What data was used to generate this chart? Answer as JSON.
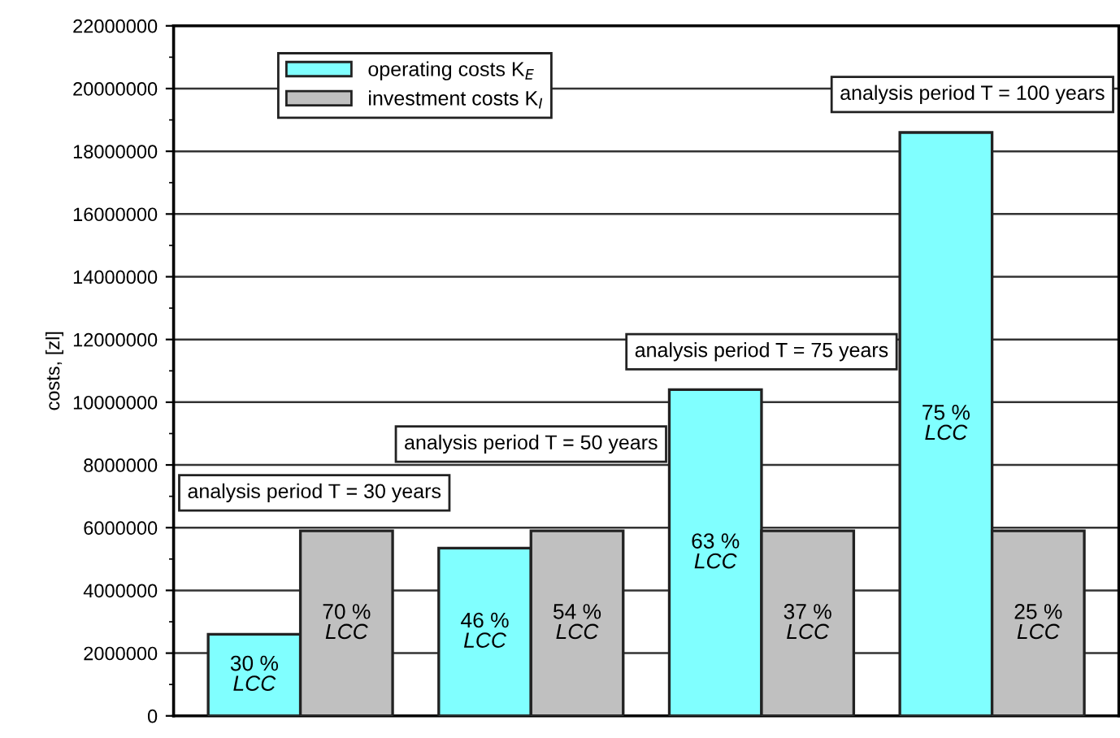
{
  "chart_data": {
    "type": "bar",
    "ylabel": "costs, [zl]",
    "categories": [
      null,
      null,
      null,
      null
    ],
    "tick_labels": "y",
    "series": [
      {
        "name": "operating costs K$_{E}$",
        "color": "#80ffff",
        "values": [
          2600000,
          5350000,
          10400000,
          18600000
        ]
      },
      {
        "name": "investment costs K$_{I}$",
        "color": "#c0c0c0",
        "values": [
          5900000,
          5900000,
          5900000,
          5900000
        ]
      }
    ],
    "ylim": [
      0,
      22000000
    ],
    "yticks": [
      0,
      2000000,
      4000000,
      6000000,
      8000000,
      10000000,
      12000000,
      14000000,
      16000000,
      18000000,
      20000000,
      22000000
    ],
    "grid": "y",
    "legend": "top left",
    "annotations": [
      "analysis period T = 30 years",
      "analysis period T = 50 years",
      "analysis period T = 75 years",
      "analysis period T = 100 years",
      "30 %\nLCC",
      "46 %\nLCC",
      "63 %\nLCC",
      "75 %\nLCC",
      "70 %\nLCC",
      "54 %\nLCC",
      "37 %\nLCC",
      "25 %\nLCC"
    ]
  }
}
